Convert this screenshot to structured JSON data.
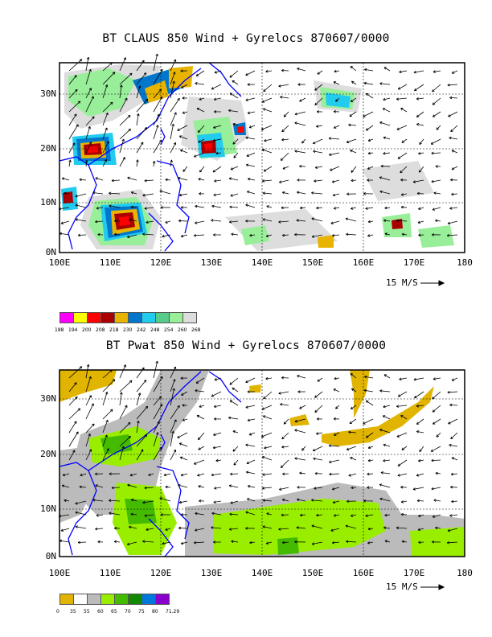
{
  "panels": [
    {
      "title": "BT CLAUS 850 Wind + Gyrelocs 870607/0000",
      "lat_ticks": [
        "30N",
        "20N",
        "10N",
        "0N"
      ],
      "lon_ticks": [
        "100E",
        "110E",
        "120E",
        "130E",
        "140E",
        "150E",
        "160E",
        "170E",
        "180"
      ],
      "ref_vector": "15 M/S",
      "legend": {
        "colors": [
          "#ff00ff",
          "#ffff00",
          "#ff0000",
          "#aa0000",
          "#e8b400",
          "#0077cc",
          "#22ccee",
          "#55cc88",
          "#99ee99",
          "#dddddd"
        ],
        "labels": [
          "188",
          "194",
          "200",
          "208",
          "218",
          "230",
          "242",
          "248",
          "254",
          "260",
          "268"
        ]
      }
    },
    {
      "title": "BT Pwat 850 Wind + Gyrelocs 870607/0000",
      "lat_ticks": [
        "30N",
        "20N",
        "10N",
        "0N"
      ],
      "lon_ticks": [
        "100E",
        "110E",
        "120E",
        "130E",
        "140E",
        "150E",
        "160E",
        "170E",
        "180"
      ],
      "ref_vector": "15 M/S",
      "legend": {
        "colors": [
          "#e0b400",
          "#ffffff",
          "#bbbbbb",
          "#99ee00",
          "#44bb00",
          "#118800",
          "#0077dd",
          "#8800cc"
        ],
        "labels": [
          "0",
          "35",
          "55",
          "60",
          "65",
          "70",
          "75",
          "80",
          "71.29"
        ]
      }
    }
  ]
}
